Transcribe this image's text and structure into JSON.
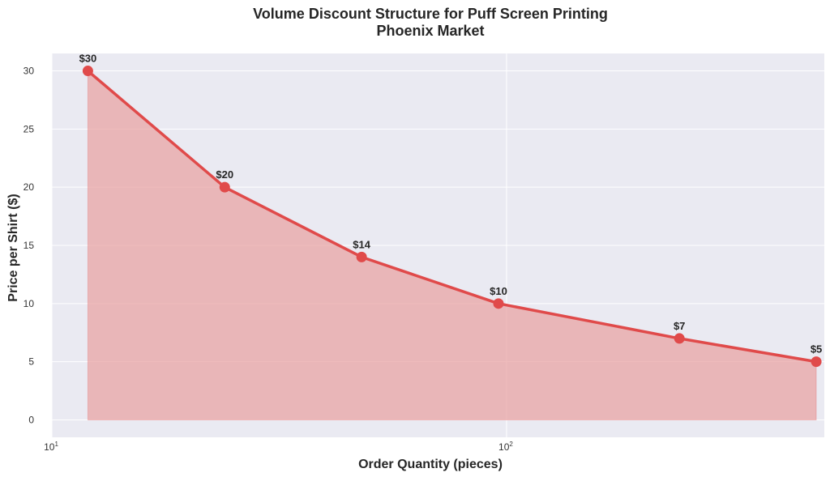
{
  "chart_data": {
    "type": "area",
    "title": "Volume Discount Structure for Puff Screen Printing",
    "subtitle": "Phoenix Market",
    "xlabel": "Order Quantity (pieces)",
    "ylabel": "Price per Shirt ($)",
    "x_scale": "log",
    "xlim": [
      10,
      500
    ],
    "ylim": [
      -1.5,
      31.5
    ],
    "x_ticks": [
      {
        "value": 10,
        "base": "10",
        "exp": "1"
      },
      {
        "value": 100,
        "base": "10",
        "exp": "2"
      }
    ],
    "y_ticks": [
      0,
      5,
      10,
      15,
      20,
      25,
      30
    ],
    "grid": true,
    "series": [
      {
        "x": [
          12,
          24,
          48,
          96,
          240,
          480
        ],
        "y": [
          30,
          20,
          14,
          10,
          7,
          5
        ],
        "labels": [
          "$30",
          "$20",
          "$14",
          "$10",
          "$7",
          "$5"
        ]
      }
    ],
    "colors": {
      "line": "#e04a4a",
      "fill": "#e8a0a0",
      "plot_background": "#eaeaf2",
      "grid": "#ffffff"
    }
  }
}
